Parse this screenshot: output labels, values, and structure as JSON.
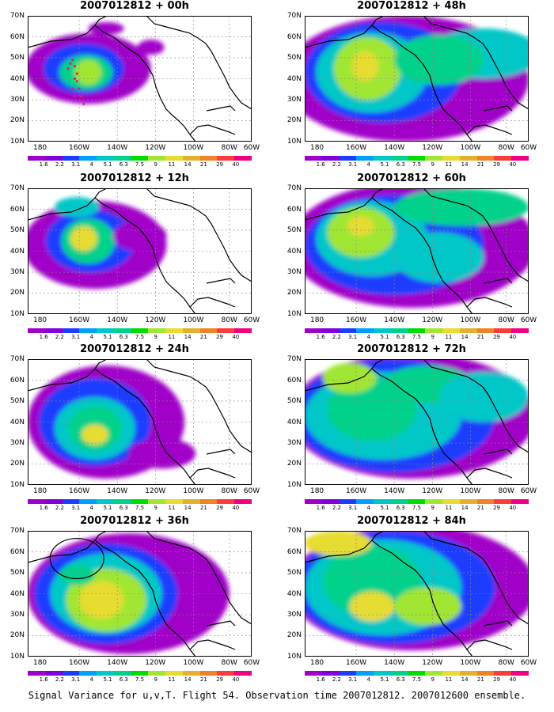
{
  "panels": [
    {
      "title": "2007012812 + 00h"
    },
    {
      "title": "2007012812 + 48h"
    },
    {
      "title": "2007012812 + 12h"
    },
    {
      "title": "2007012812 + 60h"
    },
    {
      "title": "2007012812 + 24h"
    },
    {
      "title": "2007012812 + 72h"
    },
    {
      "title": "2007012812 + 36h"
    },
    {
      "title": "2007012812 + 84h"
    }
  ],
  "y_axis_labels": [
    "70N",
    "60N",
    "50N",
    "40N",
    "30N",
    "20N",
    "10N"
  ],
  "x_axis_labels": [
    "180",
    "160W",
    "140W",
    "120W",
    "100W",
    "80W",
    "60W"
  ],
  "colorbar": {
    "labels": [
      "1.6",
      "2.2",
      "3.1",
      "4",
      "5.1",
      "6.3",
      "7.5",
      "9",
      "11",
      "14",
      "21",
      "29",
      "40"
    ],
    "colors": [
      "#a000c8",
      "#8200dc",
      "#1e3cff",
      "#00a0ff",
      "#00c8c8",
      "#00d28c",
      "#00dc00",
      "#a0e632",
      "#e6dc32",
      "#e6af2d",
      "#f08228",
      "#fa3c3c",
      "#f00082"
    ]
  },
  "caption": "Signal Variance for u,v,T. Flight 54. Observation time 2007012812. 2007012600 ensemble."
}
